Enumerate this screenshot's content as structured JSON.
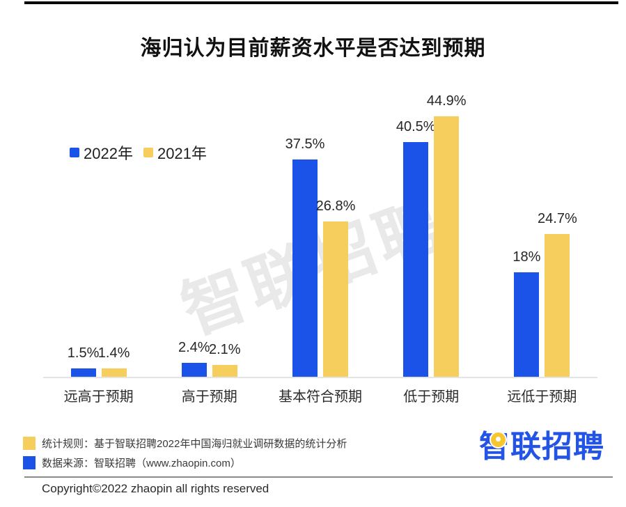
{
  "title": "海归认为目前薪资水平是否达到预期",
  "watermark": "智联招聘",
  "colors": {
    "series_2022": "#1b53e8",
    "series_2021": "#f6ce5d",
    "logo_blue": "#2354e6",
    "logo_pin_yellow": "#f7c52e",
    "axis_line": "#e4e4e4",
    "top_rule": "#000000",
    "bottom_rule": "#8a8a8a"
  },
  "chart_data": {
    "type": "bar",
    "categories": [
      "远高于预期",
      "高于预期",
      "基本符合预期",
      "低于预期",
      "远低于预期"
    ],
    "series": [
      {
        "name": "2022年",
        "color": "#1b53e8",
        "values": [
          1.5,
          2.4,
          37.5,
          40.5,
          18
        ],
        "labels": [
          "1.5%",
          "2.4%",
          "37.5%",
          "40.5%",
          "18%"
        ]
      },
      {
        "name": "2021年",
        "color": "#f6ce5d",
        "values": [
          1.4,
          2.1,
          26.8,
          44.9,
          24.7
        ],
        "labels": [
          "1.4%",
          "2.1%",
          "26.8%",
          "44.9%",
          "24.7%"
        ]
      }
    ],
    "title": "海归认为目前薪资水平是否达到预期",
    "xlabel": "",
    "ylabel": "",
    "ylim": [
      0,
      50
    ],
    "grid": false,
    "legend_position": "top-left",
    "value_labels_shown": true,
    "axis_ticks_shown": false
  },
  "legend": {
    "items": [
      {
        "label": "2022年",
        "color": "#1b53e8"
      },
      {
        "label": "2021年",
        "color": "#f6ce5d"
      }
    ]
  },
  "footer": {
    "notes": [
      {
        "swatch": "yellow",
        "text": "统计规则：基于智联招聘2022年中国海归就业调研数据的统计分析"
      },
      {
        "swatch": "blue",
        "text": "数据来源：智联招聘（www.zhaopin.com）"
      }
    ],
    "logo_text_first_char": "智",
    "logo_text_rest": "联招聘",
    "copyright": "Copyright©2022 zhaopin all rights reserved"
  }
}
